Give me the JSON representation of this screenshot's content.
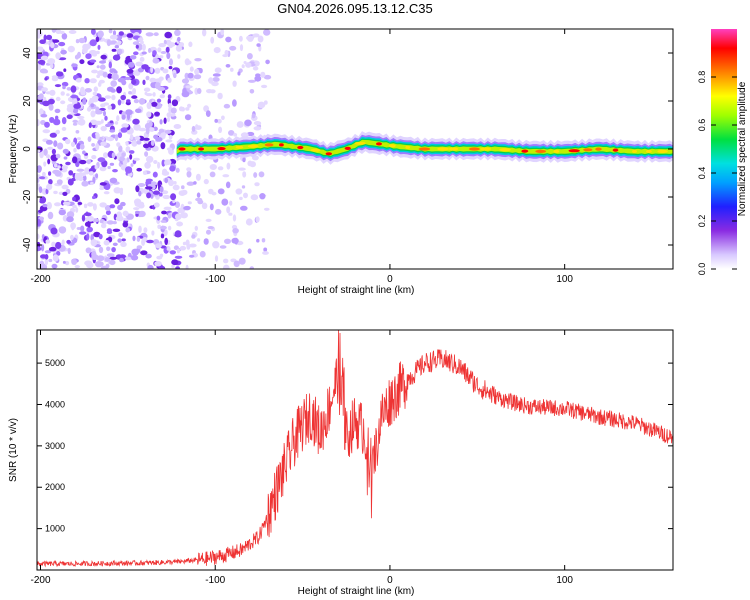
{
  "title": "GN04.2026.095.13.12.C35",
  "chart_data": [
    {
      "type": "heatmap",
      "name": "spectrogram",
      "xlabel": "Height of straight line (km)",
      "ylabel": "Frequency (Hz)",
      "xlim": [
        -202,
        162
      ],
      "ylim": [
        -50,
        50
      ],
      "xticks": [
        -200,
        -100,
        0,
        100
      ],
      "yticks": [
        -40,
        -20,
        0,
        20,
        40
      ],
      "colorbar": {
        "label": "Normalized spectral amplitude",
        "range": [
          0,
          1
        ],
        "ticks": [
          0.0,
          0.2,
          0.4,
          0.6,
          0.8
        ]
      },
      "noise_region_km": [
        -202,
        -95
      ],
      "signal_onset_km": -122,
      "ridge": [
        {
          "x": -120,
          "f": 0
        },
        {
          "x": -100,
          "f": 0
        },
        {
          "x": -80,
          "f": 1
        },
        {
          "x": -65,
          "f": 2
        },
        {
          "x": -55,
          "f": 1
        },
        {
          "x": -45,
          "f": 0
        },
        {
          "x": -35,
          "f": -2
        },
        {
          "x": -25,
          "f": 0
        },
        {
          "x": -15,
          "f": 3
        },
        {
          "x": -5,
          "f": 2
        },
        {
          "x": 5,
          "f": 1
        },
        {
          "x": 20,
          "f": 0
        },
        {
          "x": 40,
          "f": 0
        },
        {
          "x": 60,
          "f": 0
        },
        {
          "x": 80,
          "f": -1
        },
        {
          "x": 100,
          "f": -1
        },
        {
          "x": 120,
          "f": 0
        },
        {
          "x": 140,
          "f": -1
        },
        {
          "x": 162,
          "f": -1
        }
      ]
    },
    {
      "type": "line",
      "name": "snr",
      "xlabel": "Height of straight line (km)",
      "ylabel": "SNR (10 * v/v)",
      "xlim": [
        -202,
        162
      ],
      "ylim": [
        0,
        5800
      ],
      "xticks": [
        -200,
        -100,
        0,
        100
      ],
      "yticks": [
        1000,
        2000,
        3000,
        4000,
        5000
      ],
      "color": "#ee3333",
      "series": [
        {
          "name": "SNR",
          "x": [
            -202,
            -180,
            -160,
            -140,
            -120,
            -105,
            -95,
            -85,
            -75,
            -70,
            -65,
            -60,
            -55,
            -50,
            -45,
            -40,
            -35,
            -30,
            -25,
            -20,
            -15,
            -10,
            -5,
            0,
            10,
            20,
            30,
            40,
            50,
            60,
            70,
            80,
            100,
            120,
            140,
            162
          ],
          "y": [
            150,
            150,
            160,
            170,
            200,
            270,
            350,
            480,
            800,
            1300,
            1900,
            2500,
            3100,
            3500,
            3800,
            3300,
            3900,
            4700,
            3200,
            3600,
            3400,
            2400,
            3700,
            4100,
            4600,
            5000,
            5100,
            4900,
            4450,
            4200,
            4050,
            3950,
            3900,
            3700,
            3550,
            3200
          ]
        }
      ]
    }
  ]
}
